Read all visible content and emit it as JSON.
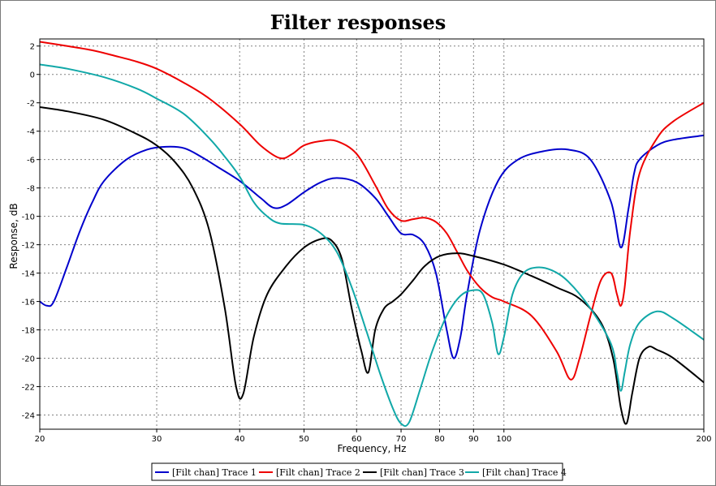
{
  "chart_data": {
    "type": "line",
    "title": "Filter responses",
    "xlabel": "Frequency, Hz",
    "ylabel": "Response, dB",
    "xscale": "log",
    "xlim": [
      20,
      200
    ],
    "ylim": [
      -25,
      2.5
    ],
    "x_ticks": [
      20,
      30,
      40,
      50,
      60,
      70,
      80,
      90,
      100,
      200
    ],
    "x_tick_labels": [
      "20",
      "30",
      "40",
      "50",
      "60",
      "70",
      "80",
      "90",
      "100",
      "200"
    ],
    "y_ticks": [
      2,
      0,
      -2,
      -4,
      -6,
      -8,
      -10,
      -12,
      -14,
      -16,
      -18,
      -20,
      -22,
      -24
    ],
    "y_tick_labels": [
      "2",
      "0",
      "-2",
      "-4",
      "-6",
      "-8",
      "-10",
      "-12",
      "-14",
      "-16",
      "-18",
      "-20",
      "-22",
      "-24"
    ],
    "grid": true,
    "legend_position": "bottom-center",
    "series": [
      {
        "name": "[Filt chan] Trace 1",
        "color": "#0000cc",
        "x": [
          20,
          20.5,
          21,
          22,
          23,
          24,
          25,
          27,
          29,
          31,
          33,
          35,
          37,
          40,
          43,
          45,
          47,
          50,
          53,
          56,
          60,
          64,
          67,
          70,
          73,
          76,
          79,
          82,
          84,
          86,
          88,
          92,
          98,
          105,
          115,
          125,
          135,
          145,
          150,
          154,
          157,
          160,
          170,
          180,
          200
        ],
        "y": [
          -16.0,
          -16.3,
          -16.0,
          -13.5,
          -11.0,
          -9.0,
          -7.5,
          -6.0,
          -5.3,
          -5.1,
          -5.2,
          -5.8,
          -6.5,
          -7.5,
          -8.7,
          -9.4,
          -9.2,
          -8.3,
          -7.6,
          -7.3,
          -7.6,
          -8.7,
          -10.0,
          -11.2,
          -11.3,
          -12.0,
          -14.0,
          -18.0,
          -20.0,
          -18.5,
          -15.5,
          -11.0,
          -7.5,
          -6.0,
          -5.4,
          -5.3,
          -6.0,
          -9.0,
          -12.2,
          -9.5,
          -7.0,
          -6.0,
          -5.0,
          -4.6,
          -4.3
        ]
      },
      {
        "name": "[Filt chan] Trace 2",
        "color": "#ee0000",
        "x": [
          20,
          22,
          24,
          26,
          28,
          30,
          33,
          36,
          40,
          43,
          46,
          48,
          50,
          53,
          56,
          60,
          64,
          67,
          70,
          73,
          76,
          79,
          82,
          85,
          88,
          92,
          96,
          100,
          110,
          120,
          126,
          130,
          135,
          140,
          145,
          148,
          150,
          152,
          155,
          160,
          170,
          180,
          200
        ],
        "y": [
          2.3,
          2.0,
          1.7,
          1.3,
          0.9,
          0.4,
          -0.6,
          -1.7,
          -3.5,
          -5.0,
          -5.9,
          -5.6,
          -5.0,
          -4.7,
          -4.7,
          -5.6,
          -7.8,
          -9.5,
          -10.3,
          -10.2,
          -10.1,
          -10.4,
          -11.2,
          -12.5,
          -13.8,
          -15.0,
          -15.7,
          -16.0,
          -17.0,
          -19.5,
          -21.5,
          -20.0,
          -17.0,
          -14.5,
          -14.0,
          -15.5,
          -16.3,
          -15.0,
          -11.0,
          -7.0,
          -4.5,
          -3.3,
          -2.0
        ]
      },
      {
        "name": "[Filt chan] Trace 3",
        "color": "#000000",
        "x": [
          20,
          22,
          25,
          28,
          30,
          32,
          34,
          36,
          38,
          39.5,
          40.5,
          42,
          44,
          47,
          50,
          53,
          55,
          57,
          59,
          61,
          62.5,
          64,
          66,
          68,
          70,
          73,
          76,
          80,
          85,
          90,
          100,
          110,
          120,
          130,
          140,
          146,
          150,
          153,
          156,
          160,
          165,
          170,
          180,
          200
        ],
        "y": [
          -2.3,
          -2.6,
          -3.2,
          -4.2,
          -5.0,
          -6.2,
          -8.0,
          -11.0,
          -16.5,
          -22.0,
          -22.5,
          -18.5,
          -15.5,
          -13.5,
          -12.2,
          -11.6,
          -11.7,
          -13.0,
          -16.5,
          -19.5,
          -21.0,
          -18.0,
          -16.5,
          -16.0,
          -15.5,
          -14.5,
          -13.5,
          -12.8,
          -12.6,
          -12.8,
          -13.4,
          -14.2,
          -15.0,
          -15.8,
          -17.5,
          -20.0,
          -23.5,
          -24.6,
          -22.5,
          -20.0,
          -19.2,
          -19.4,
          -20.0,
          -21.7
        ]
      },
      {
        "name": "[Filt chan] Trace 4",
        "color": "#11a8a8",
        "x": [
          20,
          22,
          25,
          28,
          30,
          33,
          36,
          38,
          40,
          42,
          44,
          46,
          50,
          53,
          56,
          59,
          62,
          65,
          68,
          70,
          72,
          75,
          78,
          82,
          86,
          90,
          93,
          96,
          98,
          100,
          103,
          107,
          112,
          118,
          125,
          135,
          145,
          148,
          150,
          152,
          155,
          160,
          170,
          180,
          200
        ],
        "y": [
          0.7,
          0.4,
          -0.2,
          -1.0,
          -1.7,
          -2.8,
          -4.5,
          -5.8,
          -7.2,
          -9.0,
          -10.0,
          -10.5,
          -10.6,
          -11.2,
          -12.5,
          -15.0,
          -18.0,
          -21.0,
          -23.5,
          -24.6,
          -24.5,
          -22.0,
          -19.5,
          -17.0,
          -15.6,
          -15.2,
          -15.5,
          -17.5,
          -19.7,
          -18.5,
          -15.5,
          -14.0,
          -13.6,
          -13.8,
          -14.6,
          -16.5,
          -19.0,
          -21.0,
          -22.3,
          -21.0,
          -19.0,
          -17.5,
          -16.7,
          -17.2,
          -18.7
        ]
      }
    ]
  }
}
